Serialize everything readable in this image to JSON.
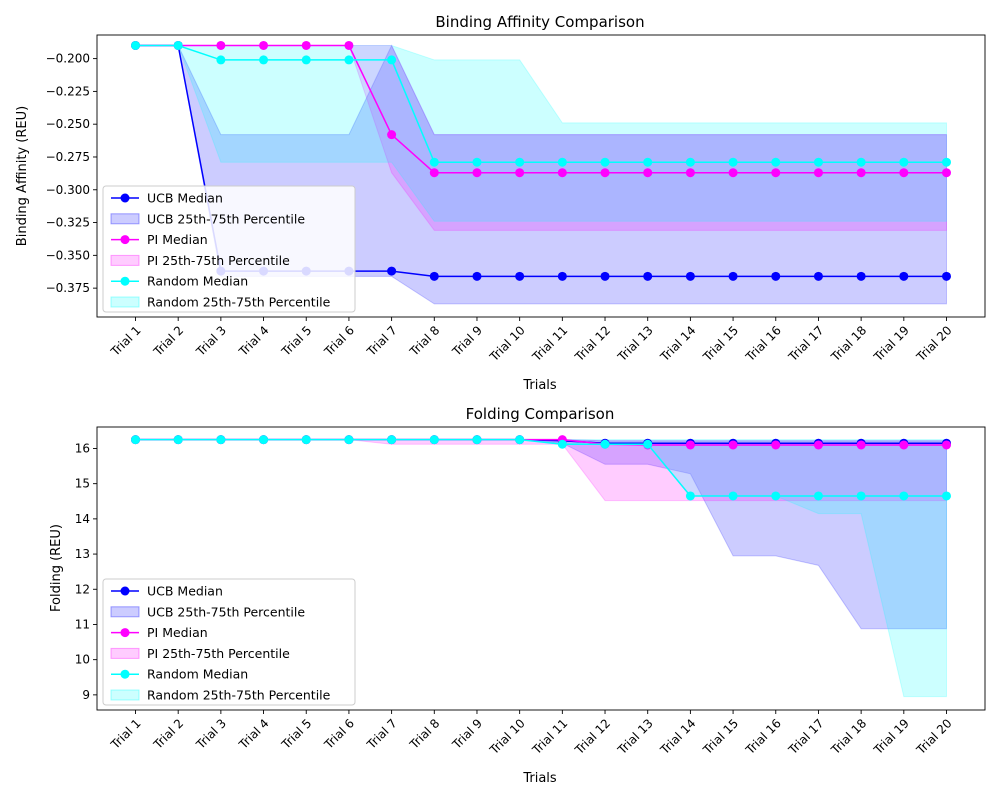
{
  "chart_data": [
    {
      "type": "line",
      "title": "Binding Affinity Comparison",
      "xlabel": "Trials",
      "ylabel": "Binding Affinity (REU)",
      "ylim": [
        -0.397,
        -0.182
      ],
      "yticks": [
        -0.2,
        -0.225,
        -0.25,
        -0.275,
        -0.3,
        -0.325,
        -0.35,
        -0.375
      ],
      "ytick_labels": [
        "−0.200",
        "−0.225",
        "−0.250",
        "−0.275",
        "−0.300",
        "−0.325",
        "−0.350",
        "−0.375"
      ],
      "legend_position": "lower-left",
      "categories": [
        "Trial 1",
        "Trial 2",
        "Trial 3",
        "Trial 4",
        "Trial 5",
        "Trial 6",
        "Trial 7",
        "Trial 8",
        "Trial 9",
        "Trial 10",
        "Trial 11",
        "Trial 12",
        "Trial 13",
        "Trial 14",
        "Trial 15",
        "Trial 16",
        "Trial 17",
        "Trial 18",
        "Trial 19",
        "Trial 20"
      ],
      "series": [
        {
          "name": "UCB Median",
          "band_name": "UCB 25th-75th Percentile",
          "color": "#0000ff",
          "median": [
            -0.19,
            -0.19,
            -0.362,
            -0.362,
            -0.362,
            -0.362,
            -0.362,
            -0.366,
            -0.366,
            -0.366,
            -0.366,
            -0.366,
            -0.366,
            -0.366,
            -0.366,
            -0.366,
            -0.366,
            -0.366,
            -0.366,
            -0.366
          ],
          "upper": [
            -0.19,
            -0.19,
            -0.258,
            -0.258,
            -0.258,
            -0.258,
            -0.19,
            -0.258,
            -0.258,
            -0.258,
            -0.258,
            -0.258,
            -0.258,
            -0.258,
            -0.258,
            -0.258,
            -0.258,
            -0.258,
            -0.258,
            -0.258
          ],
          "lower": [
            -0.19,
            -0.19,
            -0.366,
            -0.366,
            -0.366,
            -0.366,
            -0.366,
            -0.387,
            -0.387,
            -0.387,
            -0.387,
            -0.387,
            -0.387,
            -0.387,
            -0.387,
            -0.387,
            -0.387,
            -0.387,
            -0.387,
            -0.387
          ]
        },
        {
          "name": "PI Median",
          "band_name": "PI 25th-75th Percentile",
          "color": "#ff00ff",
          "median": [
            -0.19,
            -0.19,
            -0.19,
            -0.19,
            -0.19,
            -0.19,
            -0.258,
            -0.287,
            -0.287,
            -0.287,
            -0.287,
            -0.287,
            -0.287,
            -0.287,
            -0.287,
            -0.287,
            -0.287,
            -0.287,
            -0.287,
            -0.287
          ],
          "upper": [
            -0.19,
            -0.19,
            -0.19,
            -0.19,
            -0.19,
            -0.19,
            -0.19,
            -0.258,
            -0.258,
            -0.258,
            -0.258,
            -0.258,
            -0.258,
            -0.258,
            -0.258,
            -0.258,
            -0.258,
            -0.258,
            -0.258,
            -0.258
          ],
          "lower": [
            -0.19,
            -0.19,
            -0.19,
            -0.19,
            -0.19,
            -0.19,
            -0.287,
            -0.331,
            -0.331,
            -0.331,
            -0.331,
            -0.331,
            -0.331,
            -0.331,
            -0.331,
            -0.331,
            -0.331,
            -0.331,
            -0.331,
            -0.331
          ]
        },
        {
          "name": "Random Median",
          "band_name": "Random 25th-75th Percentile",
          "color": "#00ffff",
          "median": [
            -0.19,
            -0.19,
            -0.201,
            -0.201,
            -0.201,
            -0.201,
            -0.201,
            -0.279,
            -0.279,
            -0.279,
            -0.279,
            -0.279,
            -0.279,
            -0.279,
            -0.279,
            -0.279,
            -0.279,
            -0.279,
            -0.279,
            -0.279
          ],
          "upper": [
            -0.19,
            -0.19,
            -0.19,
            -0.19,
            -0.19,
            -0.19,
            -0.19,
            -0.201,
            -0.201,
            -0.201,
            -0.249,
            -0.249,
            -0.249,
            -0.249,
            -0.249,
            -0.249,
            -0.249,
            -0.249,
            -0.249,
            -0.249
          ],
          "lower": [
            -0.19,
            -0.19,
            -0.279,
            -0.279,
            -0.279,
            -0.279,
            -0.279,
            -0.324,
            -0.324,
            -0.324,
            -0.324,
            -0.324,
            -0.324,
            -0.324,
            -0.324,
            -0.324,
            -0.324,
            -0.324,
            -0.324,
            -0.324
          ]
        }
      ]
    },
    {
      "type": "line",
      "title": "Folding Comparison",
      "xlabel": "Trials",
      "ylabel": "Folding (REU)",
      "ylim": [
        8.57,
        16.61
      ],
      "yticks": [
        9,
        10,
        11,
        12,
        13,
        14,
        15,
        16
      ],
      "ytick_labels": [
        "9",
        "10",
        "11",
        "12",
        "13",
        "14",
        "15",
        "16"
      ],
      "legend_position": "lower-left",
      "categories": [
        "Trial 1",
        "Trial 2",
        "Trial 3",
        "Trial 4",
        "Trial 5",
        "Trial 6",
        "Trial 7",
        "Trial 8",
        "Trial 9",
        "Trial 10",
        "Trial 11",
        "Trial 12",
        "Trial 13",
        "Trial 14",
        "Trial 15",
        "Trial 16",
        "Trial 17",
        "Trial 18",
        "Trial 19",
        "Trial 20"
      ],
      "series": [
        {
          "name": "UCB Median",
          "band_name": "UCB 25th-75th Percentile",
          "color": "#0000ff",
          "median": [
            16.25,
            16.25,
            16.25,
            16.25,
            16.25,
            16.25,
            16.25,
            16.25,
            16.25,
            16.25,
            16.22,
            16.15,
            16.15,
            16.15,
            16.15,
            16.15,
            16.15,
            16.15,
            16.15,
            16.15
          ],
          "upper": [
            16.25,
            16.25,
            16.25,
            16.25,
            16.25,
            16.25,
            16.25,
            16.25,
            16.25,
            16.25,
            16.25,
            16.22,
            16.22,
            16.22,
            16.22,
            16.22,
            16.22,
            16.22,
            16.22,
            16.22
          ],
          "lower": [
            16.25,
            16.25,
            16.25,
            16.25,
            16.25,
            16.25,
            16.25,
            16.25,
            16.25,
            16.25,
            16.15,
            15.55,
            15.55,
            15.28,
            12.95,
            12.95,
            12.68,
            10.88,
            10.88,
            10.88
          ]
        },
        {
          "name": "PI Median",
          "band_name": "PI 25th-75th Percentile",
          "color": "#ff00ff",
          "median": [
            16.25,
            16.25,
            16.25,
            16.25,
            16.25,
            16.25,
            16.25,
            16.25,
            16.25,
            16.25,
            16.25,
            16.12,
            16.1,
            16.1,
            16.1,
            16.1,
            16.1,
            16.1,
            16.1,
            16.1
          ],
          "upper": [
            16.25,
            16.25,
            16.25,
            16.25,
            16.25,
            16.25,
            16.25,
            16.25,
            16.25,
            16.25,
            16.25,
            16.22,
            16.22,
            16.22,
            16.22,
            16.22,
            16.22,
            16.22,
            16.22,
            16.22
          ],
          "lower": [
            16.25,
            16.25,
            16.25,
            16.25,
            16.25,
            16.25,
            16.12,
            16.12,
            16.12,
            16.12,
            16.12,
            14.52,
            14.52,
            14.52,
            14.52,
            14.52,
            14.52,
            14.52,
            14.52,
            14.52
          ]
        },
        {
          "name": "Random Median",
          "band_name": "Random 25th-75th Percentile",
          "color": "#00ffff",
          "median": [
            16.25,
            16.25,
            16.25,
            16.25,
            16.25,
            16.25,
            16.25,
            16.25,
            16.25,
            16.25,
            16.12,
            16.12,
            16.12,
            14.65,
            14.65,
            14.65,
            14.65,
            14.65,
            14.65,
            14.65
          ],
          "upper": [
            16.25,
            16.25,
            16.25,
            16.25,
            16.25,
            16.25,
            16.25,
            16.25,
            16.25,
            16.25,
            16.25,
            16.25,
            16.25,
            16.25,
            16.25,
            16.25,
            16.25,
            16.25,
            16.25,
            16.25
          ],
          "lower": [
            16.25,
            16.25,
            16.25,
            16.25,
            16.25,
            16.25,
            16.25,
            16.25,
            16.25,
            16.25,
            16.12,
            16.12,
            16.12,
            14.65,
            14.65,
            14.65,
            14.15,
            14.15,
            8.95,
            8.95
          ]
        }
      ]
    }
  ]
}
